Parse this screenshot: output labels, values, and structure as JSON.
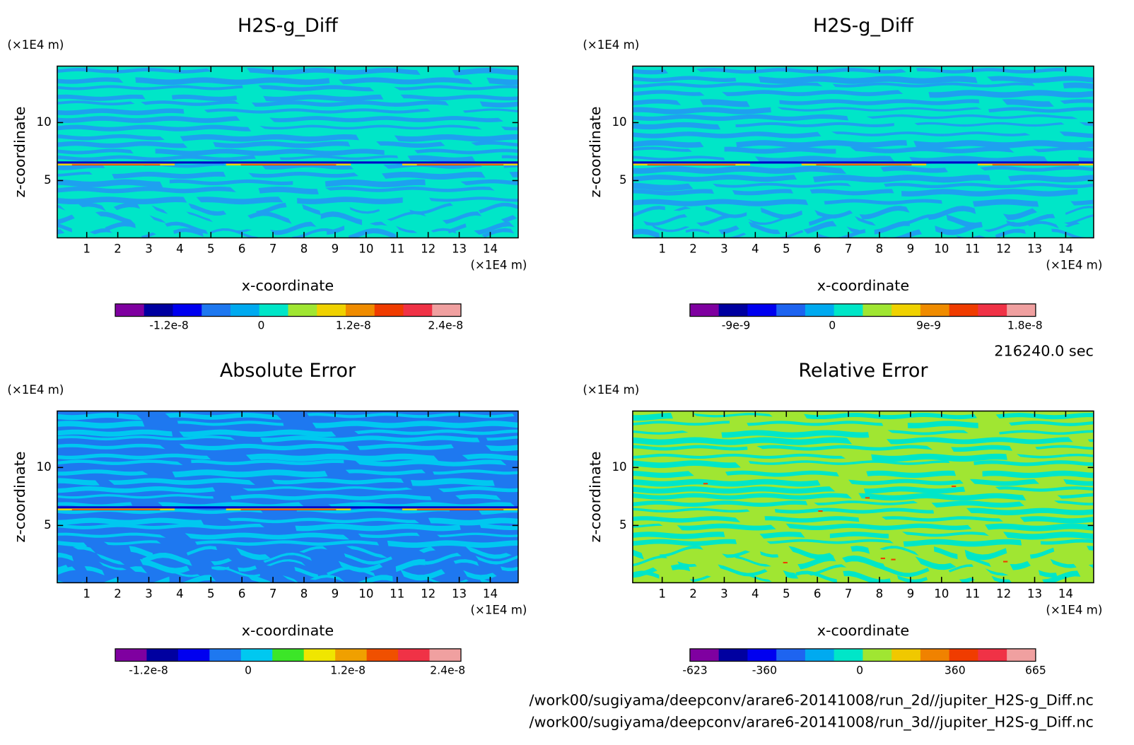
{
  "chart_data": [
    {
      "type": "contour",
      "title": "H2S-g_Diff",
      "xlabel": "x-coordinate",
      "ylabel": "z-coordinate",
      "x_unit": "(×1E4 m)",
      "y_unit": "(×1E4 m)",
      "xlim": [
        0.05,
        14.9
      ],
      "ylim": [
        0.06,
        14.87
      ],
      "xticks": [
        1,
        2,
        3,
        4,
        5,
        6,
        7,
        8,
        9,
        10,
        11,
        12,
        13,
        14
      ],
      "yticks": [
        5,
        10
      ],
      "field_colors": [
        "#00e6c8",
        "#1ea0f0"
      ],
      "colorbar": {
        "lim": [
          -1.9e-08,
          2.6e-08
        ],
        "ticks": [
          -1.2e-08,
          0,
          1.2e-08,
          2.4e-08
        ],
        "colors": [
          "#7f00a0",
          "#0000a0",
          "#0000f0",
          "#1e78f0",
          "#00aaf0",
          "#00e6c8",
          "#a0e632",
          "#f0d200",
          "#f08c00",
          "#f03c00",
          "#f03246",
          "#f0a0a0"
        ]
      }
    },
    {
      "type": "contour",
      "title": "H2S-g_Diff",
      "xlabel": "x-coordinate",
      "ylabel": "z-coordinate",
      "x_unit": "(×1E4 m)",
      "y_unit": "(×1E4 m)",
      "xlim": [
        0.05,
        14.9
      ],
      "ylim": [
        0.06,
        14.87
      ],
      "xticks": [
        1,
        2,
        3,
        4,
        5,
        6,
        7,
        8,
        9,
        10,
        11,
        12,
        13,
        14
      ],
      "yticks": [
        5,
        10
      ],
      "field_colors": [
        "#00e6c8",
        "#1ea0f0"
      ],
      "colorbar": {
        "lim": [
          -1.33e-08,
          1.9e-08
        ],
        "ticks": [
          -9e-09,
          0,
          9e-09,
          1.8e-08
        ],
        "colors": [
          "#7f00a0",
          "#0000a0",
          "#0000f0",
          "#1e64f0",
          "#00aaf0",
          "#00e6c8",
          "#a0e632",
          "#f0d200",
          "#f08c00",
          "#f03c00",
          "#f03246",
          "#f0a0a0"
        ]
      }
    },
    {
      "type": "contour",
      "title": "Absolute Error",
      "xlabel": "x-coordinate",
      "ylabel": "z-coordinate",
      "x_unit": "(×1E4 m)",
      "y_unit": "(×1E4 m)",
      "xlim": [
        0.05,
        14.9
      ],
      "ylim": [
        0.06,
        14.87
      ],
      "xticks": [
        1,
        2,
        3,
        4,
        5,
        6,
        7,
        8,
        9,
        10,
        11,
        12,
        13,
        14
      ],
      "yticks": [
        5,
        10
      ],
      "field_colors": [
        "#1e78f0",
        "#00c8f0"
      ],
      "colorbar": {
        "lim": [
          -1.6e-08,
          2.56e-08
        ],
        "ticks": [
          -1.2e-08,
          0,
          1.2e-08,
          2.4e-08
        ],
        "colors": [
          "#7f00a0",
          "#0000a0",
          "#0000f0",
          "#1e78f0",
          "#00c8f0",
          "#3ce628",
          "#f0e600",
          "#f0a000",
          "#f05000",
          "#f03246",
          "#f0a0a0"
        ]
      }
    },
    {
      "type": "contour",
      "title": "Relative Error",
      "xlabel": "x-coordinate",
      "ylabel": "z-coordinate",
      "x_unit": "(×1E4 m)",
      "y_unit": "(×1E4 m)",
      "xlim": [
        0.05,
        14.9
      ],
      "ylim": [
        0.06,
        14.87
      ],
      "xticks": [
        1,
        2,
        3,
        4,
        5,
        6,
        7,
        8,
        9,
        10,
        11,
        12,
        13,
        14
      ],
      "yticks": [
        5,
        10
      ],
      "field_colors": [
        "#a0e632",
        "#00e6c8"
      ],
      "colorbar": {
        "lim": [
          -642,
          665
        ],
        "ticks": [
          -623,
          -360,
          0,
          360,
          665
        ],
        "colors": [
          "#7f00a0",
          "#0000a0",
          "#0000f0",
          "#1e64f0",
          "#00aaf0",
          "#00e6c8",
          "#a0e632",
          "#f0c800",
          "#f08200",
          "#f03c00",
          "#f03246",
          "#f0a0a0"
        ]
      }
    }
  ],
  "annotations": {
    "time": "216240.0 sec",
    "files": [
      "/work00/sugiyama/deepconv/arare6-20141008/run_2d//jupiter_H2S-g_Diff.nc",
      "/work00/sugiyama/deepconv/arare6-20141008/run_3d//jupiter_H2S-g_Diff.nc"
    ]
  }
}
